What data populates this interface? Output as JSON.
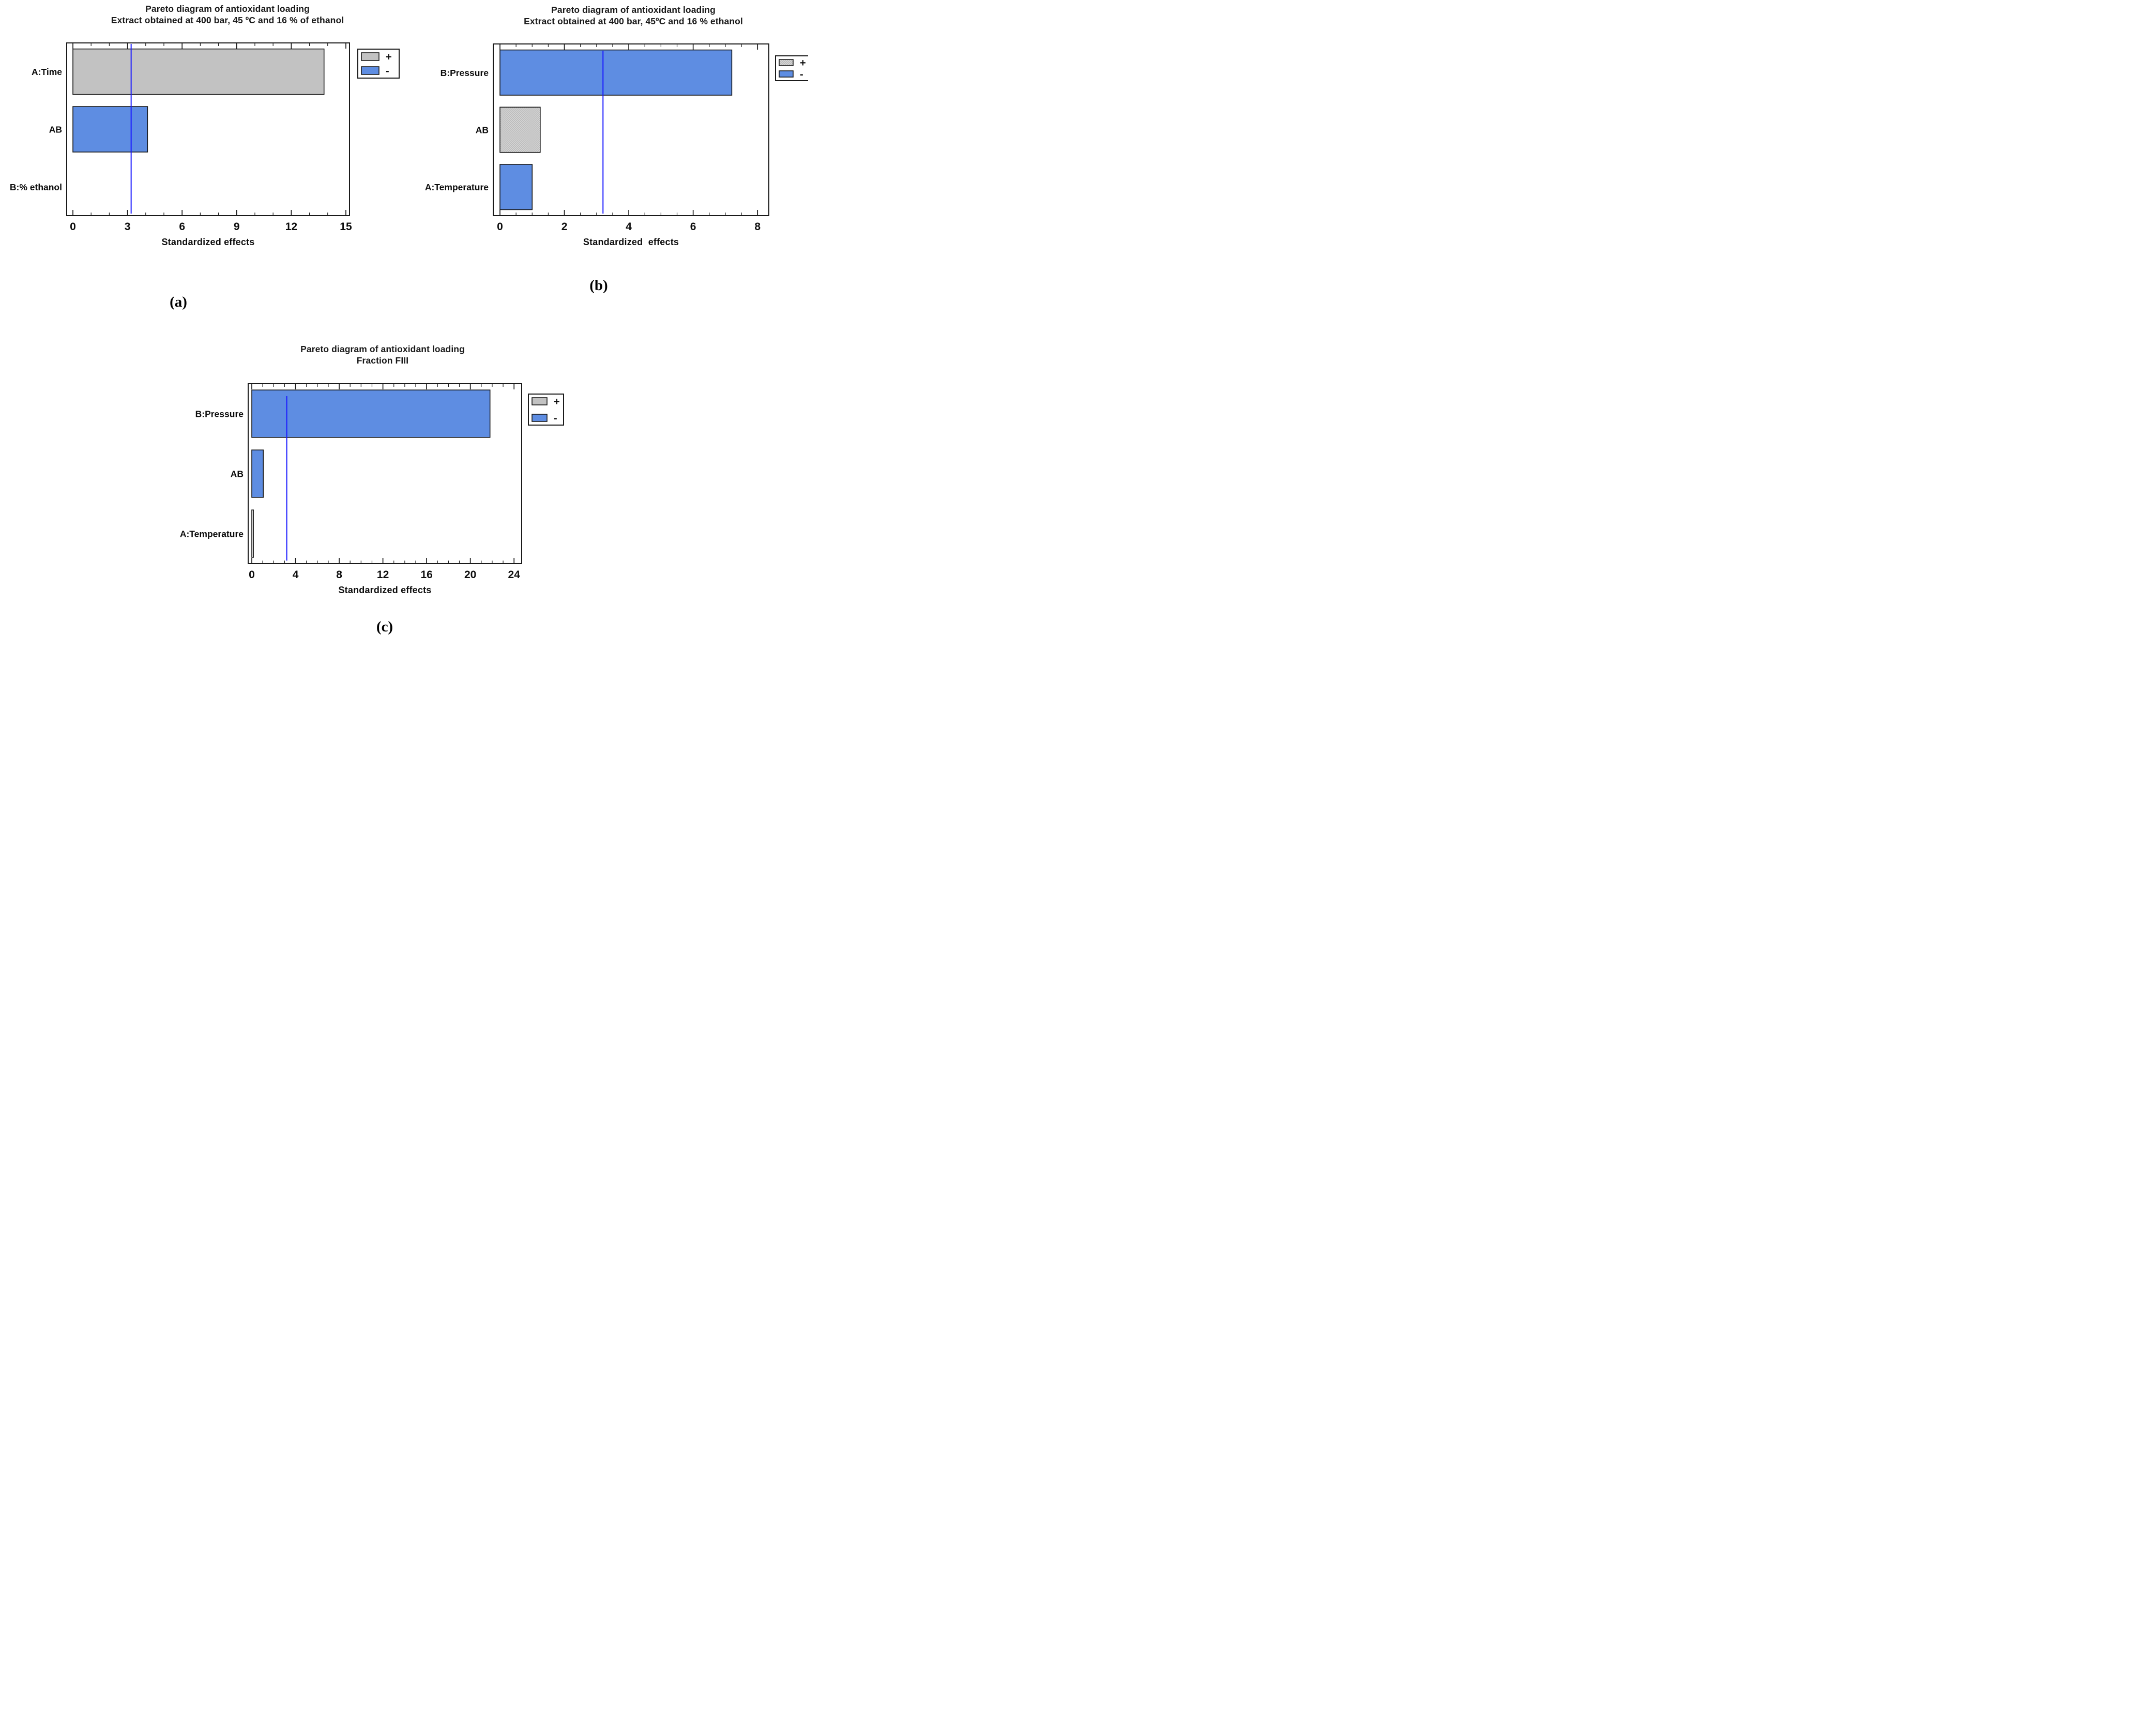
{
  "page": {
    "background": "#ffffff"
  },
  "colors": {
    "bar_blue": "#5e8de2",
    "bar_gray": "#c2c2c2",
    "bar_outline_fill": "#e4e4e4",
    "stipple_dot": "#8f8f8f",
    "stipple_bg": "#d3d3d3",
    "reference_line": "#1a1aff",
    "axis": "#1a1a1a"
  },
  "chart_data": [
    {
      "id": "a",
      "type": "bar",
      "title": "Pareto diagram of antioxidant loading",
      "subtitle": "Extract obtained at 400 bar, 45 ºC and 16 % of ethanol",
      "caption": "(a)",
      "xlabel": "Standardized effects",
      "categories": [
        "A:Time",
        "AB",
        "B:% ethanol"
      ],
      "values": [
        13.8,
        4.1,
        0
      ],
      "bar_styles": [
        "gray",
        "blue",
        "none"
      ],
      "bar_signs": [
        "+",
        "-",
        null
      ],
      "reference_line_x": 3.2,
      "xlim": [
        0,
        15.2
      ],
      "x_major_ticks": [
        0,
        3,
        6,
        9,
        12,
        15
      ],
      "x_minor_step": 1,
      "grid": false,
      "legend_position": "right-of-plot-top",
      "legend": [
        {
          "label": "+",
          "style": "gray"
        },
        {
          "label": "-",
          "style": "blue"
        }
      ]
    },
    {
      "id": "b",
      "type": "bar",
      "title": "Pareto diagram of antioxidant loading",
      "subtitle": "Extract obtained at 400 bar, 45ºC and 16 % ethanol",
      "caption": "(b)",
      "xlabel": "Standardized  effects",
      "categories": [
        "B:Pressure",
        "AB",
        "A:Temperature"
      ],
      "values": [
        7.2,
        1.25,
        1.0
      ],
      "bar_styles": [
        "blue",
        "gray-stipple",
        "blue"
      ],
      "bar_signs": [
        "-",
        "+",
        "-"
      ],
      "reference_line_x": 3.2,
      "xlim": [
        0,
        8.35
      ],
      "x_major_ticks": [
        0,
        2,
        4,
        6,
        8
      ],
      "x_minor_step": 0.5,
      "grid": false,
      "legend_position": "right-of-plot-top",
      "legend": [
        {
          "label": "+",
          "style": "gray-stipple"
        },
        {
          "label": "-",
          "style": "blue"
        }
      ]
    },
    {
      "id": "c",
      "type": "bar",
      "title": "Pareto diagram of antioxidant loading",
      "subtitle": "Fraction FIII",
      "caption": "(c)",
      "xlabel": "Standardized effects",
      "categories": [
        "B:Pressure",
        "AB",
        "A:Temperature"
      ],
      "values": [
        21.8,
        1.05,
        0.15
      ],
      "bar_styles": [
        "blue",
        "blue",
        "outline"
      ],
      "bar_signs": [
        "-",
        "-",
        "+"
      ],
      "reference_line_x": 3.2,
      "xlim": [
        0,
        24.7
      ],
      "x_major_ticks": [
        0,
        4,
        8,
        12,
        16,
        20,
        24
      ],
      "x_minor_step": 1,
      "grid": false,
      "legend_position": "right-of-plot-top",
      "legend": [
        {
          "label": "+",
          "style": "gray"
        },
        {
          "label": "-",
          "style": "blue"
        }
      ]
    }
  ]
}
